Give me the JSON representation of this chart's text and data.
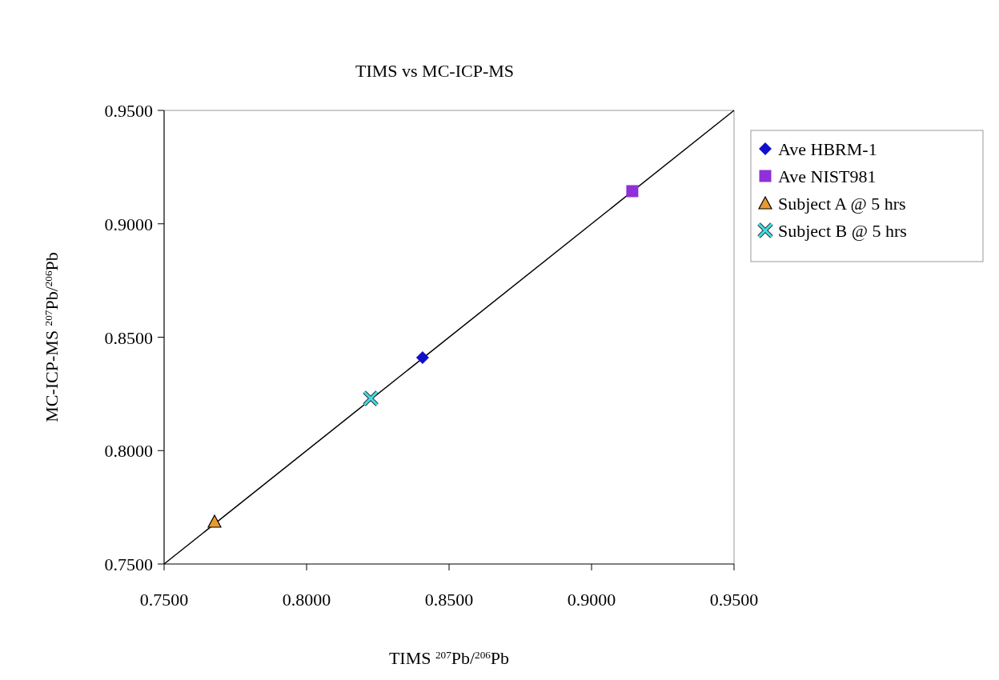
{
  "chart_data": {
    "type": "scatter",
    "title": "TIMS vs MC-ICP-MS",
    "xlabel": "TIMS $^{207}$Pb/$^{206}$Pb",
    "ylabel": "MC-ICP-MS $^{207}$Pb/$^{206}$Pb",
    "xlim": [
      0.75,
      0.95
    ],
    "ylim": [
      0.75,
      0.95
    ],
    "xticks": [
      {
        "value": 0.75,
        "label": "0.7500"
      },
      {
        "value": 0.8,
        "label": "0.8000"
      },
      {
        "value": 0.85,
        "label": "0.8500"
      },
      {
        "value": 0.9,
        "label": "0.9000"
      },
      {
        "value": 0.95,
        "label": "0.9500"
      }
    ],
    "yticks": [
      {
        "value": 0.75,
        "label": "0.7500"
      },
      {
        "value": 0.8,
        "label": "0.8000"
      },
      {
        "value": 0.85,
        "label": "0.8500"
      },
      {
        "value": 0.9,
        "label": "0.9000"
      },
      {
        "value": 0.95,
        "label": "0.9500"
      }
    ],
    "grid": false,
    "legend": "right",
    "series": [
      {
        "type": "line",
        "color": "#000000",
        "x": [
          0.75,
          0.95
        ],
        "values": [
          0.75,
          0.95
        ],
        "marker": "none",
        "line_style": "solid"
      },
      {
        "name": "Ave HBRM-1",
        "color": "#1010cc",
        "x": [
          0.8407
        ],
        "values": [
          0.841
        ],
        "marker": "diamond"
      },
      {
        "name": "Ave NIST981",
        "color": "#9030d8",
        "x": [
          0.9143
        ],
        "values": [
          0.9144
        ],
        "marker": "square"
      },
      {
        "name": "Subject A @ 5 hrs",
        "color": "#e89a30",
        "x": [
          0.7677
        ],
        "values": [
          0.7687
        ],
        "marker": "triangle"
      },
      {
        "name": "Subject B @ 5 hrs",
        "color": "#40e0e8",
        "x": [
          0.8225
        ],
        "values": [
          0.823
        ],
        "marker": "cross"
      }
    ]
  }
}
